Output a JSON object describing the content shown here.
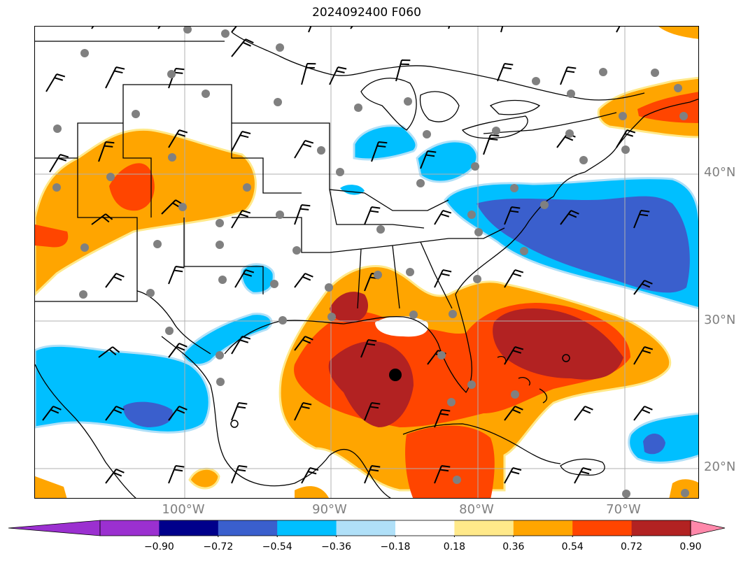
{
  "title": "2024092400 F060",
  "latitude_labels": [
    "40°N",
    "30°N",
    "20°N"
  ],
  "longitude_labels": [
    "100°W",
    "90°W",
    "80°W",
    "70°W"
  ],
  "colorbar": {
    "ticks": [
      "−0.90",
      "−0.72",
      "−0.54",
      "−0.36",
      "−0.18",
      "0.18",
      "0.36",
      "0.54",
      "0.72",
      "0.90"
    ],
    "colors": [
      "#9b30d0",
      "#00008b",
      "#3a5fcd",
      "#00bfff",
      "#b0e0f8",
      "#ffffff",
      "#ffe98a",
      "#ffa500",
      "#ff4500",
      "#b22222"
    ],
    "under_color": "#9b30d0",
    "over_color": "#ff88aa"
  },
  "colors": {
    "orange": "#ffa500",
    "red_orange": "#ff4500",
    "dark_red": "#b22222",
    "yellow": "#ffe98a",
    "cyan": "#00bfff",
    "light_blue": "#b0e0f8",
    "blue": "#3a5fcd",
    "station_marker": "#808080",
    "center_marker": "#000000",
    "gridline": "#b0b0b0"
  },
  "center_marker_icon": "storm-center-dot"
}
